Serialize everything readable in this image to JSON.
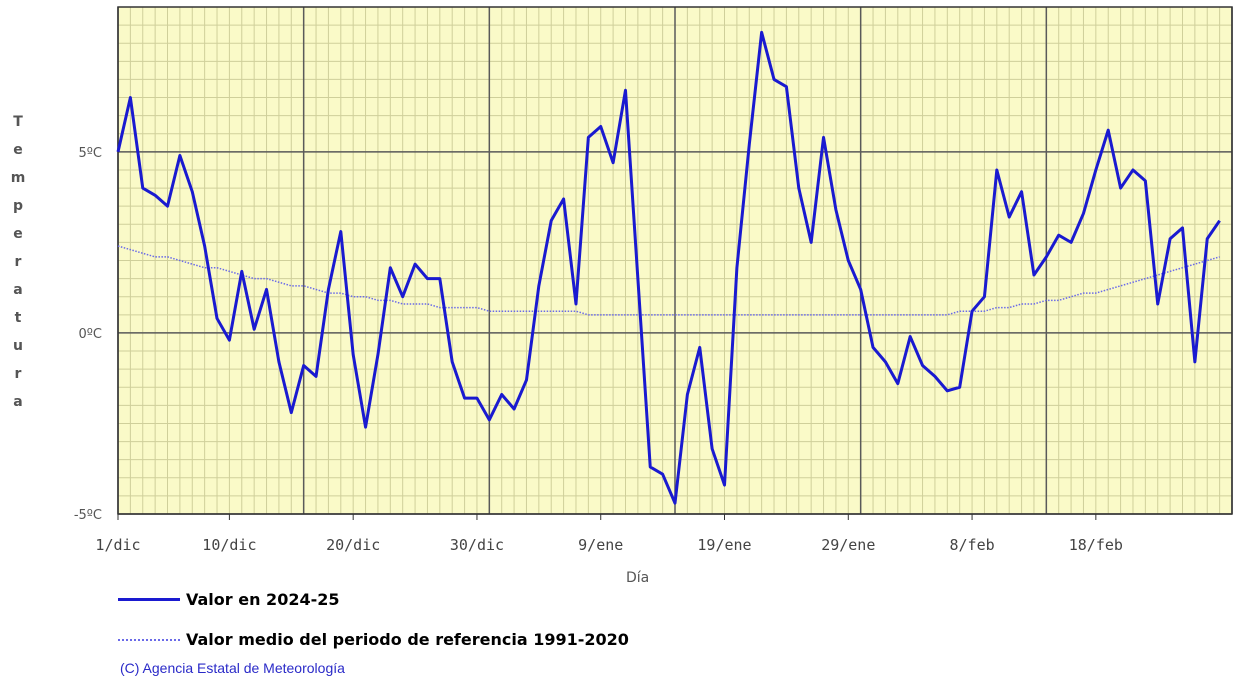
{
  "chart_data": {
    "type": "line",
    "xlabel": "Día",
    "ylabel": "Temperatura",
    "ylim": [
      -5,
      9
    ],
    "yticks": [
      {
        "value": 5,
        "label": "5ºC"
      },
      {
        "value": 0,
        "label": "0ºC"
      },
      {
        "value": -5,
        "label": "-5ºC"
      }
    ],
    "xticks": [
      {
        "day": 1,
        "label": "1/dic"
      },
      {
        "day": 10,
        "label": "10/dic"
      },
      {
        "day": 20,
        "label": "20/dic"
      },
      {
        "day": 30,
        "label": "30/dic"
      },
      {
        "day": 40,
        "label": "9/ene"
      },
      {
        "day": 50,
        "label": "19/ene"
      },
      {
        "day": 60,
        "label": "29/ene"
      },
      {
        "day": 70,
        "label": "8/feb"
      },
      {
        "day": 80,
        "label": "18/feb"
      }
    ],
    "x_range": [
      1,
      91
    ],
    "grid": true,
    "series": [
      {
        "name": "Valor en 2024-25",
        "color": "#1a1ad0",
        "style": "solid",
        "values": [
          5.0,
          6.5,
          4.0,
          3.8,
          3.5,
          4.9,
          3.9,
          2.4,
          0.4,
          -0.2,
          1.7,
          0.1,
          1.2,
          -0.8,
          -2.2,
          -0.9,
          -1.2,
          1.2,
          2.8,
          -0.6,
          -2.6,
          -0.6,
          1.8,
          1.0,
          1.9,
          1.5,
          1.5,
          -0.8,
          -1.8,
          -1.8,
          -2.4,
          -1.7,
          -2.1,
          -1.3,
          1.3,
          3.1,
          3.7,
          0.8,
          5.4,
          5.7,
          4.7,
          6.7,
          1.5,
          -3.7,
          -3.9,
          -4.7,
          -1.7,
          -0.4,
          -3.2,
          -4.2,
          1.8,
          5.2,
          8.3,
          7.0,
          6.8,
          4.0,
          2.5,
          5.4,
          3.4,
          2.0,
          1.2,
          -0.4,
          -0.8,
          -1.4,
          -0.1,
          -0.9,
          -1.2,
          -1.6,
          -1.5,
          0.6,
          1.0,
          4.5,
          3.2,
          3.9,
          1.6,
          2.1,
          2.7,
          2.5,
          3.3,
          4.5,
          5.6,
          4.0,
          4.5,
          4.2,
          0.8,
          2.6,
          2.9,
          -0.8,
          2.6,
          3.1
        ]
      },
      {
        "name": "Valor medio del periodo de referencia 1991-2020",
        "color": "#6a6ae8",
        "style": "dotted",
        "values": [
          2.4,
          2.3,
          2.2,
          2.1,
          2.1,
          2.0,
          1.9,
          1.8,
          1.8,
          1.7,
          1.6,
          1.5,
          1.5,
          1.4,
          1.3,
          1.3,
          1.2,
          1.1,
          1.1,
          1.0,
          1.0,
          0.9,
          0.9,
          0.8,
          0.8,
          0.8,
          0.7,
          0.7,
          0.7,
          0.7,
          0.6,
          0.6,
          0.6,
          0.6,
          0.6,
          0.6,
          0.6,
          0.6,
          0.5,
          0.5,
          0.5,
          0.5,
          0.5,
          0.5,
          0.5,
          0.5,
          0.5,
          0.5,
          0.5,
          0.5,
          0.5,
          0.5,
          0.5,
          0.5,
          0.5,
          0.5,
          0.5,
          0.5,
          0.5,
          0.5,
          0.5,
          0.5,
          0.5,
          0.5,
          0.5,
          0.5,
          0.5,
          0.5,
          0.6,
          0.6,
          0.6,
          0.7,
          0.7,
          0.8,
          0.8,
          0.9,
          0.9,
          1.0,
          1.1,
          1.1,
          1.2,
          1.3,
          1.4,
          1.5,
          1.6,
          1.7,
          1.8,
          1.9,
          2.0,
          2.1
        ]
      }
    ]
  },
  "credit": "(C) Agencia Estatal de Meteorología"
}
